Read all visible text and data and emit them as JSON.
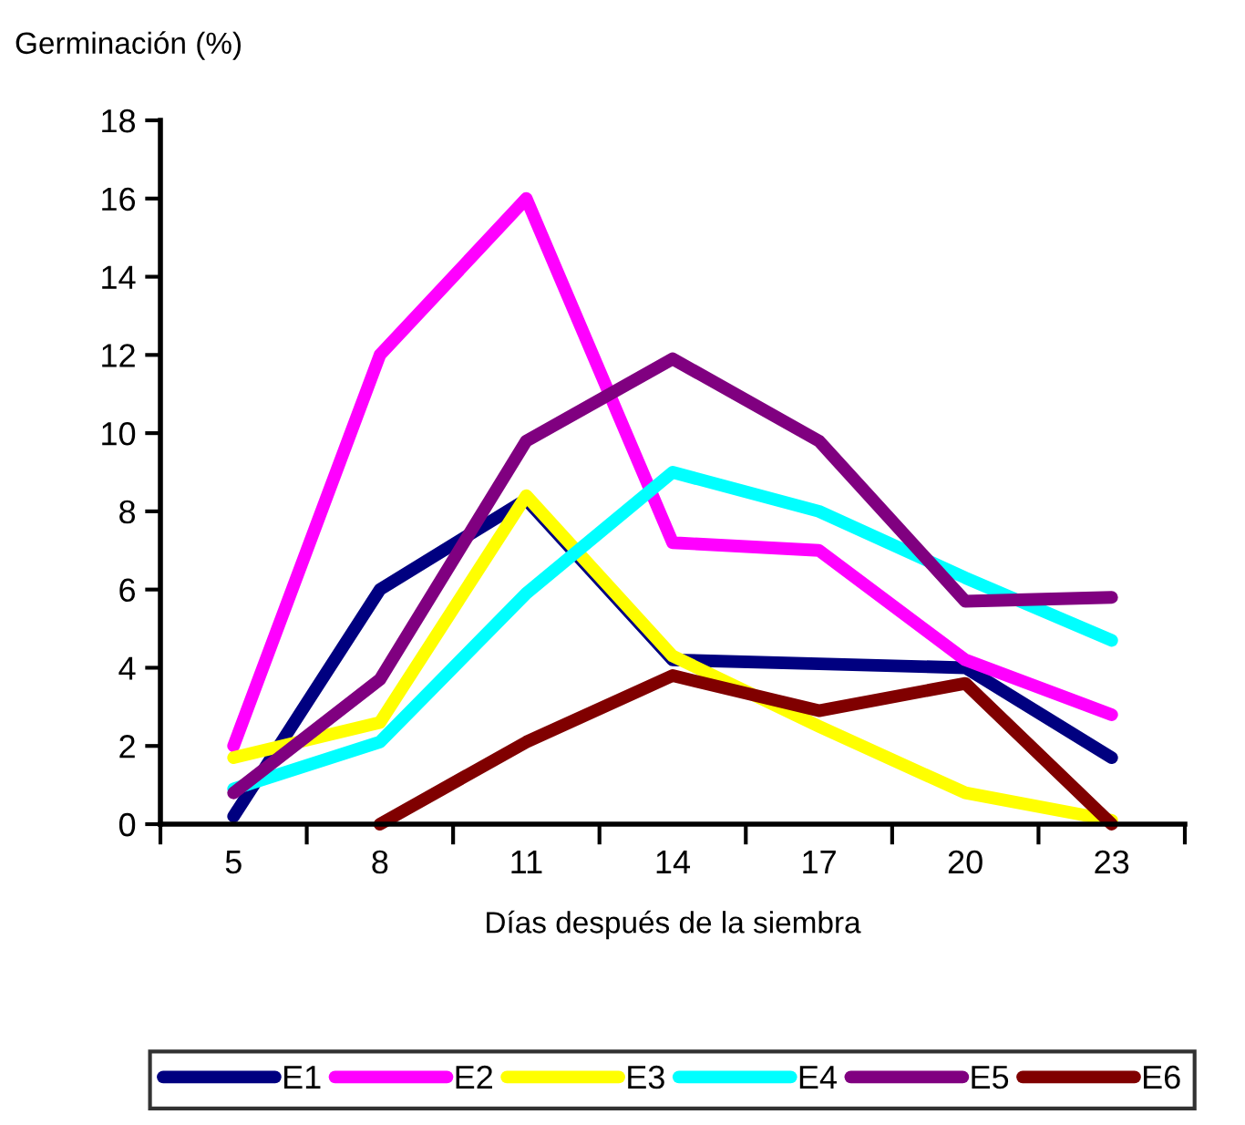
{
  "chart_data": {
    "type": "line",
    "ylabel": "Germinación (%)",
    "xlabel": "Días después de la siembra",
    "categories": [
      "5",
      "8",
      "11",
      "14",
      "17",
      "20",
      "23"
    ],
    "series": [
      {
        "name": "E1",
        "color": "#000080",
        "values": [
          0.2,
          6.0,
          8.3,
          4.2,
          4.1,
          4.0,
          1.7
        ]
      },
      {
        "name": "E2",
        "color": "#ff00ff",
        "values": [
          2.0,
          12.0,
          16.0,
          7.2,
          7.0,
          4.2,
          2.8
        ]
      },
      {
        "name": "E3",
        "color": "#ffff00",
        "values": [
          1.7,
          2.6,
          8.4,
          4.3,
          2.5,
          0.8,
          0.1
        ]
      },
      {
        "name": "E4",
        "color": "#00ffff",
        "values": [
          0.9,
          2.1,
          5.9,
          9.0,
          8.0,
          6.3,
          4.7
        ]
      },
      {
        "name": "E5",
        "color": "#800080",
        "values": [
          0.8,
          3.7,
          9.8,
          11.9,
          9.8,
          5.7,
          5.8
        ]
      },
      {
        "name": "E6",
        "color": "#800000",
        "values": [
          null,
          0.0,
          2.1,
          3.8,
          2.9,
          3.6,
          0.0
        ]
      }
    ],
    "ylim": [
      0,
      18
    ],
    "yticks": [
      0,
      2,
      4,
      6,
      8,
      10,
      12,
      14,
      16,
      18
    ],
    "legend": "bottom",
    "marker": "none",
    "line_style": "solid"
  }
}
